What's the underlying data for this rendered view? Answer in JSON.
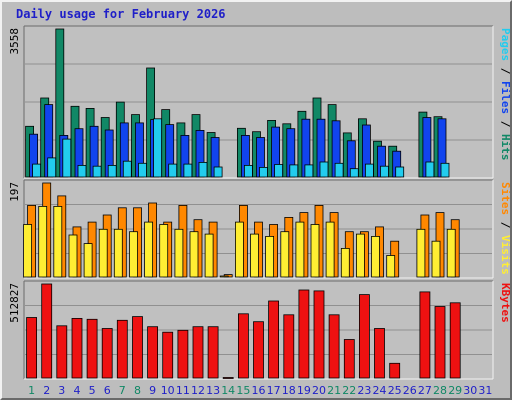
{
  "chart_data": {
    "type": "bar",
    "title": "Daily usage for February 2026",
    "categories": [
      "1",
      "2",
      "3",
      "4",
      "5",
      "6",
      "7",
      "8",
      "9",
      "10",
      "11",
      "12",
      "13",
      "14",
      "15",
      "16",
      "17",
      "18",
      "19",
      "20",
      "21",
      "22",
      "23",
      "24",
      "25",
      "26",
      "27",
      "28",
      "29",
      "30",
      "31"
    ],
    "weekend_days": [
      "1",
      "7",
      "8",
      "14",
      "15",
      "21",
      "22",
      "28",
      "29"
    ],
    "panels": [
      {
        "name": "hits-files-pages",
        "ymax_label": "3558",
        "ymax": 3558,
        "side_labels": [
          {
            "text": "Pages",
            "color": "#22ccee"
          },
          {
            "text": " / ",
            "color": "#000000"
          },
          {
            "text": "Files",
            "color": "#1144ee"
          },
          {
            "text": " / ",
            "color": "#000000"
          },
          {
            "text": "Hits",
            "color": "#118866"
          }
        ],
        "series": [
          {
            "name": "Hits",
            "color": "#118866",
            "values": [
              1220,
              1900,
              3558,
              1700,
              1650,
              1430,
              1800,
              1500,
              2620,
              1620,
              1300,
              1500,
              1070,
              0,
              1170,
              1090,
              1360,
              1280,
              1580,
              1900,
              1740,
              1060,
              1400,
              860,
              740,
              0,
              1560,
              1450,
              0,
              0,
              0
            ]
          },
          {
            "name": "Files",
            "color": "#1144ee",
            "values": [
              1030,
              1740,
              1000,
              1160,
              1220,
              1130,
              1300,
              1300,
              1380,
              1260,
              1000,
              1120,
              950,
              0,
              1000,
              950,
              1200,
              1160,
              1390,
              1390,
              1350,
              870,
              1250,
              740,
              620,
              0,
              1430,
              1400,
              0,
              0,
              0
            ]
          },
          {
            "name": "Pages",
            "color": "#22ccee",
            "values": [
              310,
              460,
              910,
              280,
              260,
              280,
              380,
              330,
              1400,
              310,
              310,
              350,
              240,
              0,
              280,
              230,
              300,
              290,
              290,
              360,
              330,
              200,
              310,
              260,
              240,
              0,
              360,
              330,
              0,
              0,
              0
            ]
          }
        ]
      },
      {
        "name": "sites-visits",
        "ymax_label": "197",
        "ymax": 197,
        "side_labels": [
          {
            "text": "Sites",
            "color": "#ff8800"
          },
          {
            "text": " / ",
            "color": "#000000"
          },
          {
            "text": "Visits",
            "color": "#ffee33"
          }
        ],
        "series": [
          {
            "name": "Sites",
            "color": "#ff8800",
            "values": [
              150,
              197,
              170,
              105,
              115,
              130,
              145,
              145,
              155,
              115,
              150,
              120,
              115,
              5,
              150,
              115,
              110,
              125,
              135,
              150,
              135,
              95,
              95,
              105,
              75,
              0,
              130,
              135,
              120,
              0,
              0
            ]
          },
          {
            "name": "Visits",
            "color": "#ffee33",
            "values": [
              110,
              148,
              148,
              88,
              70,
              100,
              100,
              95,
              115,
              110,
              100,
              95,
              90,
              2,
              115,
              90,
              85,
              95,
              115,
              110,
              115,
              60,
              90,
              85,
              45,
              0,
              100,
              75,
              100,
              0,
              0
            ]
          }
        ]
      },
      {
        "name": "kbytes",
        "ymax_label": "512827",
        "ymax": 512827,
        "side_labels": [
          {
            "text": "KBytes",
            "color": "#ee1111"
          }
        ],
        "series": [
          {
            "name": "KBytes",
            "color": "#ee1111",
            "values": [
              330000,
              512827,
              285000,
              325000,
              320000,
              270000,
              315000,
              335000,
              280000,
              250000,
              260000,
              280000,
              280000,
              3000,
              350000,
              307000,
              420000,
              345000,
              480000,
              475000,
              345000,
              210000,
              455000,
              270000,
              80000,
              0,
              470000,
              390000,
              410000,
              0,
              0
            ]
          }
        ]
      }
    ]
  },
  "colors": {
    "background": "#bdbdbd",
    "plot_area": "#c0c0c0",
    "grid": "#909090",
    "weekday_label": "#1f1fc8",
    "weekend_label": "#118866"
  }
}
